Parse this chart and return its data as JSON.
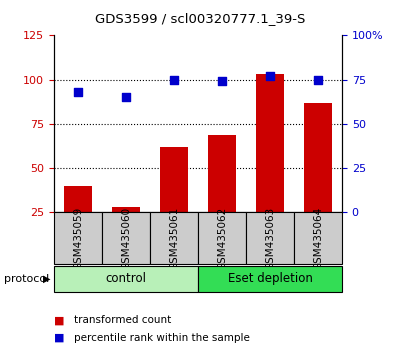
{
  "title": "GDS3599 / scl00320777.1_39-S",
  "samples": [
    "GSM435059",
    "GSM435060",
    "GSM435061",
    "GSM435062",
    "GSM435063",
    "GSM435064"
  ],
  "red_values": [
    40,
    28,
    62,
    69,
    103,
    87
  ],
  "blue_values": [
    68,
    65,
    75,
    74,
    77,
    75
  ],
  "left_ylim": [
    25,
    125
  ],
  "left_yticks": [
    25,
    50,
    75,
    100,
    125
  ],
  "right_ylim": [
    0,
    100
  ],
  "right_yticks": [
    0,
    25,
    50,
    75,
    100
  ],
  "right_yticklabels": [
    "0",
    "25",
    "50",
    "75",
    "100%"
  ],
  "hlines": [
    50,
    75,
    100
  ],
  "bar_color": "#cc0000",
  "dot_color": "#0000cc",
  "bar_width": 0.6,
  "groups": [
    {
      "label": "control",
      "span": [
        0,
        3
      ],
      "color": "#b8f0b8"
    },
    {
      "label": "Eset depletion",
      "span": [
        3,
        6
      ],
      "color": "#33dd55"
    }
  ],
  "sample_box_color": "#cccccc",
  "protocol_label": "protocol",
  "legend_red": "transformed count",
  "legend_blue": "percentile rank within the sample",
  "tick_label_color_left": "#cc0000",
  "tick_label_color_right": "#0000cc"
}
